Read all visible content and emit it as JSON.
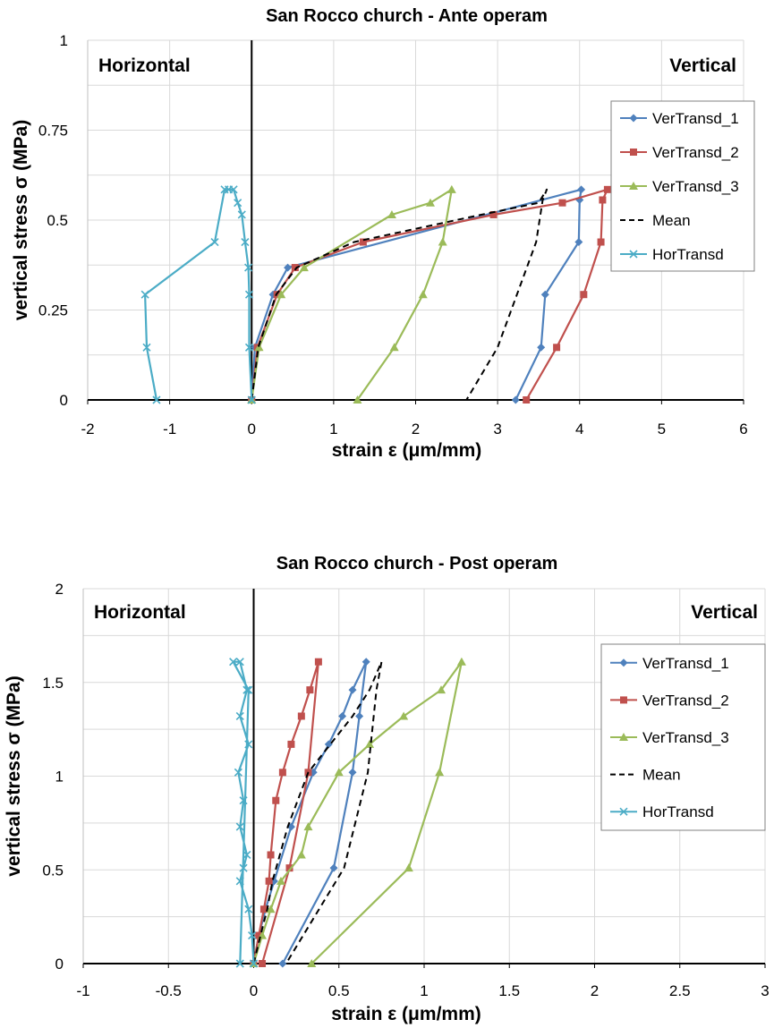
{
  "chart_data": [
    {
      "type": "line",
      "title": "San Rocco church - Ante operam",
      "xlabel": "strain ε (μm/mm)",
      "ylabel": "vertical stress σ (MPa)",
      "xlim": [
        -2,
        6
      ],
      "ylim": [
        0,
        1
      ],
      "xticks": [
        "-2",
        "-1",
        "0",
        "1",
        "2",
        "3",
        "4",
        "5",
        "6"
      ],
      "yticks": [
        "0",
        "0.25",
        "0.5",
        "0.75",
        "1"
      ],
      "xtick_values": [
        -2,
        -1,
        0,
        1,
        2,
        3,
        4,
        5,
        6
      ],
      "ytick_values": [
        0,
        0.25,
        0.5,
        0.75,
        1
      ],
      "grid": true,
      "annotations": {
        "left": "Horizontal",
        "right": "Vertical"
      },
      "legend_position": "right",
      "series": [
        {
          "name": "VerTransd_1",
          "color": "#4f81bd",
          "marker": "diamond",
          "dash": false,
          "x": [
            0,
            0.04,
            0.26,
            0.44,
            4.02,
            4.0,
            3.99,
            3.58,
            3.53,
            3.22
          ],
          "y": [
            0,
            0.146,
            0.293,
            0.368,
            0.585,
            0.556,
            0.439,
            0.293,
            0.146,
            0
          ]
        },
        {
          "name": "VerTransd_2",
          "color": "#c0504d",
          "marker": "square",
          "dash": false,
          "x": [
            0,
            0.07,
            0.31,
            0.53,
            1.36,
            2.95,
            3.79,
            4.34,
            4.28,
            4.26,
            4.05,
            3.72,
            3.35
          ],
          "y": [
            0,
            0.146,
            0.293,
            0.368,
            0.439,
            0.515,
            0.548,
            0.585,
            0.556,
            0.439,
            0.293,
            0.146,
            0
          ]
        },
        {
          "name": "VerTransd_3",
          "color": "#9bbb59",
          "marker": "triangle",
          "dash": false,
          "x": [
            0,
            0.09,
            0.36,
            0.64,
            1.71,
            2.18,
            2.44,
            2.33,
            2.09,
            1.74,
            1.29
          ],
          "y": [
            0,
            0.146,
            0.293,
            0.368,
            0.515,
            0.548,
            0.585,
            0.439,
            0.293,
            0.146,
            0
          ]
        },
        {
          "name": "Mean",
          "color": "#000000",
          "marker": "none",
          "dash": true,
          "x": [
            0,
            0.08,
            0.3,
            0.55,
            1.25,
            2.8,
            3.5,
            3.6,
            3.55,
            3.47,
            3.0,
            2.62
          ],
          "y": [
            0,
            0.146,
            0.293,
            0.368,
            0.439,
            0.515,
            0.548,
            0.585,
            0.556,
            0.439,
            0.146,
            0
          ]
        },
        {
          "name": "HorTransd",
          "color": "#4bacc6",
          "marker": "x",
          "dash": false,
          "x": [
            0,
            -0.03,
            -0.03,
            -0.04,
            -0.08,
            -0.12,
            -0.17,
            -0.22,
            -0.28,
            -0.33,
            -0.45,
            -1.3,
            -1.28,
            -1.16
          ],
          "y": [
            0,
            0.146,
            0.293,
            0.368,
            0.439,
            0.515,
            0.548,
            0.585,
            0.585,
            0.585,
            0.439,
            0.293,
            0.146,
            0
          ]
        }
      ]
    },
    {
      "type": "line",
      "title": "San Rocco church - Post operam",
      "xlabel": "strain ε (μm/mm)",
      "ylabel": "vertical stress σ (MPa)",
      "xlim": [
        -1,
        3
      ],
      "ylim": [
        0,
        2
      ],
      "xticks": [
        "-1",
        "-0.5",
        "0",
        "0.5",
        "1",
        "1.5",
        "2",
        "2.5",
        "3"
      ],
      "yticks": [
        "0",
        "0.5",
        "1",
        "1.5",
        "2"
      ],
      "xtick_values": [
        -1,
        -0.5,
        0,
        0.5,
        1,
        1.5,
        2,
        2.5,
        3
      ],
      "ytick_values": [
        0,
        0.5,
        1,
        1.5,
        2
      ],
      "grid": true,
      "annotations": {
        "left": "Horizontal",
        "right": "Vertical"
      },
      "legend_position": "right",
      "series": [
        {
          "name": "VerTransd_1",
          "color": "#4f81bd",
          "marker": "diamond",
          "dash": false,
          "x": [
            0,
            0.03,
            0.07,
            0.12,
            0.22,
            0.35,
            0.44,
            0.52,
            0.58,
            0.66,
            0.62,
            0.58,
            0.47,
            0.17
          ],
          "y": [
            0,
            0.15,
            0.29,
            0.44,
            0.73,
            1.02,
            1.17,
            1.32,
            1.46,
            1.61,
            1.32,
            1.02,
            0.51,
            0
          ]
        },
        {
          "name": "VerTransd_2",
          "color": "#c0504d",
          "marker": "square",
          "dash": false,
          "x": [
            0,
            0.03,
            0.06,
            0.09,
            0.1,
            0.13,
            0.17,
            0.22,
            0.28,
            0.33,
            0.38,
            0.32,
            0.21,
            0.05
          ],
          "y": [
            0,
            0.15,
            0.29,
            0.44,
            0.58,
            0.87,
            1.02,
            1.17,
            1.32,
            1.46,
            1.61,
            1.02,
            0.51,
            0
          ]
        },
        {
          "name": "VerTransd_3",
          "color": "#9bbb59",
          "marker": "triangle",
          "dash": false,
          "x": [
            0,
            0.05,
            0.1,
            0.16,
            0.28,
            0.32,
            0.5,
            0.68,
            0.88,
            1.1,
            1.22,
            1.09,
            0.91,
            0.34
          ],
          "y": [
            0,
            0.15,
            0.29,
            0.44,
            0.58,
            0.73,
            1.02,
            1.17,
            1.32,
            1.46,
            1.61,
            1.02,
            0.51,
            0
          ]
        },
        {
          "name": "Mean",
          "color": "#000000",
          "marker": "none",
          "dash": true,
          "x": [
            0,
            0.04,
            0.08,
            0.11,
            0.2,
            0.32,
            0.45,
            0.58,
            0.68,
            0.75,
            0.72,
            0.67,
            0.53,
            0.19
          ],
          "y": [
            0,
            0.15,
            0.29,
            0.44,
            0.73,
            1.02,
            1.17,
            1.32,
            1.46,
            1.61,
            1.46,
            1.02,
            0.51,
            0
          ]
        },
        {
          "name": "HorTransd",
          "color": "#4bacc6",
          "marker": "x",
          "dash": false,
          "x": [
            0,
            -0.01,
            -0.03,
            -0.08,
            -0.06,
            -0.04,
            -0.08,
            -0.06,
            -0.09,
            -0.03,
            -0.08,
            -0.04,
            -0.08,
            -0.12,
            -0.03,
            -0.08
          ],
          "y": [
            0,
            0.15,
            0.29,
            0.44,
            0.51,
            0.58,
            0.73,
            0.87,
            1.02,
            1.17,
            1.32,
            1.46,
            1.61,
            1.61,
            1.46,
            0
          ]
        }
      ]
    }
  ]
}
